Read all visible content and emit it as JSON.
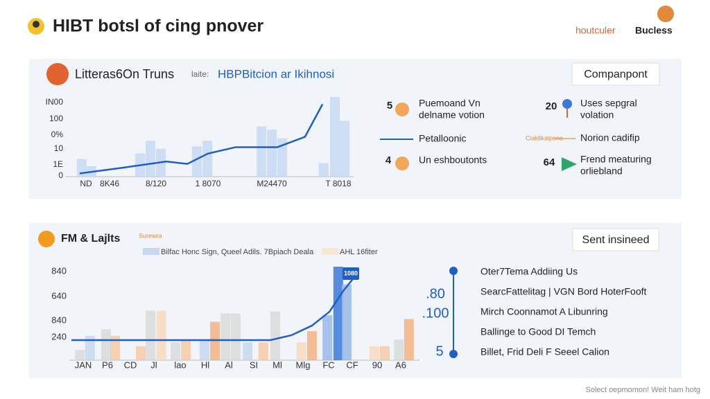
{
  "header": {
    "title": "HIBT botsl of cing pnover",
    "brand": [
      "houtculer",
      "Bucless"
    ]
  },
  "panel1": {
    "title": "Litteras6On Truns",
    "subtitle_prefix": "laite:",
    "subtitle": "HBPBitcion ar Ikihnosi",
    "button": "Companpont",
    "chart": {
      "type": "bar-line",
      "xlim": [
        0,
        100
      ],
      "ylim": [
        0,
        100
      ],
      "y_labels": [
        "IN00",
        "100",
        "0%",
        "10",
        "1E",
        "0"
      ],
      "x_labels": [
        "ND",
        "8K46",
        "8/120",
        "1 8070",
        "M24470",
        "T 8018"
      ],
      "bars": {
        "color": "#c5d8f3",
        "x": [
          5.5,
          8.9,
          25.8,
          29.4,
          33,
          45.5,
          49.2,
          68,
          71.6,
          75.2,
          89.6,
          93.5,
          96.9
        ],
        "values": [
          22,
          13,
          29,
          45,
          35,
          38,
          45,
          63,
          59,
          48,
          17,
          100,
          70
        ]
      },
      "line": {
        "color": "#1f5fbf",
        "x": [
          4.8,
          19.3,
          34.9,
          42.2,
          49.4,
          59,
          73.5,
          83.1,
          89.2
        ],
        "y": [
          4,
          11,
          19,
          16,
          29,
          37,
          37,
          50,
          91
        ]
      }
    },
    "legend": [
      {
        "number": 5,
        "lines": [
          "Puemoand Vn",
          "delname votion"
        ]
      },
      {
        "lines": [
          "Petalloonic"
        ]
      },
      {
        "number": 4,
        "lines": [
          "Un eshboutonts"
        ]
      },
      {
        "number": 20,
        "lines": [
          "Uses sepgral",
          "volation"
        ]
      },
      {
        "tag": "Cialdikalpeno",
        "lines": [
          "Norion cadifip"
        ]
      },
      {
        "number": 64,
        "lines": [
          "Frend meaturing",
          "orliebland"
        ]
      }
    ]
  },
  "panel2": {
    "title": "FM & Lajlts",
    "tag": "Surewra",
    "legend": [
      "Bilfac Honc Sign, Queel Adils. 7Bpiach Deala",
      "AHL 16fiter"
    ],
    "button": "Sent insineed",
    "chart": {
      "type": "bar-line",
      "xlim": [
        0,
        100
      ],
      "ylim": [
        0,
        100
      ],
      "y_labels": [
        "840",
        "640",
        "840",
        "240"
      ],
      "x_labels": [
        "JAN",
        "P6",
        "CD",
        "Jl",
        "lao",
        "Hl",
        "Al",
        "SI",
        "Ml",
        "Mlg",
        "FC",
        "CF",
        "90",
        "A6"
      ],
      "bars": {
        "x": [
          3,
          5.9,
          10.5,
          13.1,
          20.4,
          23.2,
          26.3,
          30.3,
          33.3,
          38.6,
          41.6,
          44.6,
          47.5,
          50.9,
          55.4,
          58.8,
          66.3,
          69.3,
          73.7,
          76.8,
          79.2,
          87.1,
          90.1,
          94.1,
          97
        ],
        "values": [
          11,
          26,
          33,
          26,
          15,
          53,
          53,
          19,
          22,
          22,
          41,
          50,
          50,
          19,
          19,
          52,
          19,
          31,
          48,
          100,
          81,
          15,
          15,
          22,
          44
        ],
        "colors": [
          "#d9d9d9",
          "#c7d7ef",
          "#d9d9d9",
          "#f6c9a6",
          "#f6c9a6",
          "#d9d9d9",
          "#f8d9bf",
          "#d9d9d9",
          "#f6c9a6",
          "#c7d7ef",
          "#f4b183",
          "#d9d9d9",
          "#d9d9d9",
          "#c7d7ef",
          "#f6c9a6",
          "#d9d9d9",
          "#f8d9bf",
          "#f4b183",
          "#9ab9e8",
          "#3b78d8",
          "#9ab9e8",
          "#f8d9bf",
          "#f6c9a6",
          "#d9d9d9",
          "#f4b183"
        ]
      },
      "line": {
        "color": "#1f5fbf",
        "x": [
          0.6,
          57.4,
          63.4,
          69.3,
          74.3,
          78.2,
          82.2
        ],
        "y": [
          21.5,
          21.5,
          26.7,
          37,
          51.9,
          74,
          92.6
        ]
      },
      "highlight_label": "1080"
    },
    "list": {
      "numbers": [
        ".80",
        ".100",
        "5"
      ],
      "items": [
        "Oter7Tema Addiing Us",
        "SearcFattelitag | VGN Bord HoterFooft",
        "Mirch Coonnamot A Libunring",
        "Ballinge to Good DI Temch",
        "Billet, Frid Deli F Seeel Calion"
      ]
    }
  },
  "footer": "Solect oepmomon! Weit ham hotg"
}
